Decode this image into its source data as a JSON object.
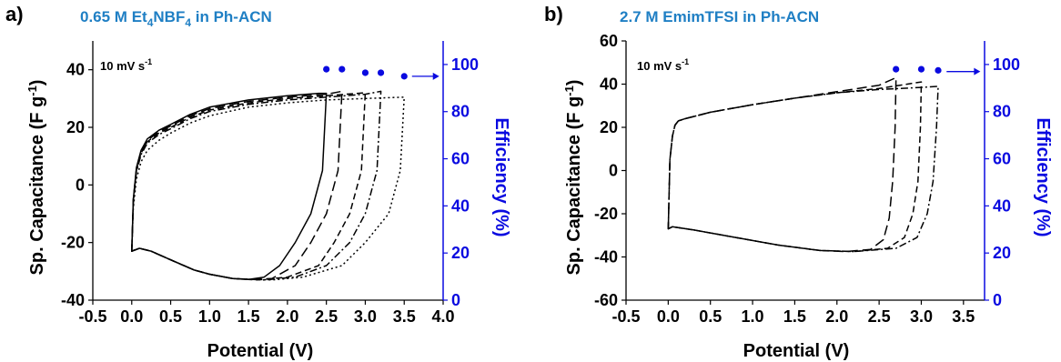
{
  "colors": {
    "efficiency": "#0a0ae0",
    "title": "#1f7fc4",
    "axis": "#000000"
  },
  "panels": [
    {
      "letter": "a)",
      "title_pre": "0.65 M Et",
      "title_sub1": "4",
      "title_mid": "NBF",
      "title_sub2": "4",
      "title_post": " in Ph-ACN",
      "scan_rate": "10 mV s",
      "scan_rate_exp": "-1",
      "xlabel": "Potential (V)",
      "ylabel": "Sp. Capacitance (F g",
      "ylabel_exp": "-1",
      "ylabel_close": ")",
      "y2label": "Efficiency (%)",
      "arrow": "→"
    },
    {
      "letter": "b)",
      "title_pre": "2.7 M EmimTFSI in Ph-ACN",
      "title_sub1": "",
      "title_mid": "",
      "title_sub2": "",
      "title_post": "",
      "scan_rate": "10 mV s",
      "scan_rate_exp": "-1",
      "xlabel": "Potential (V)",
      "ylabel": "Sp. Capacitance (F g",
      "ylabel_exp": "-1",
      "ylabel_close": ")",
      "y2label": "Efficiency (%)",
      "arrow": "→"
    }
  ],
  "chart_data": [
    {
      "type": "line",
      "xlabel": "Potential (V)",
      "ylabel": "Sp. Capacitance (F g-1)",
      "y2label": "Efficiency (%)",
      "xlim": [
        -0.5,
        4.0
      ],
      "ylim": [
        -40,
        50
      ],
      "y2lim": [
        0,
        110
      ],
      "xticks": [
        -0.5,
        0.0,
        0.5,
        1.0,
        1.5,
        2.0,
        2.5,
        3.0,
        3.5,
        4.0
      ],
      "xtick_labels": [
        "-0.5",
        "0.0",
        "0.5",
        "1.0",
        "1.5",
        "2.0",
        "2.5",
        "3.0",
        "3.5",
        "4.0"
      ],
      "yticks": [
        -40,
        -20,
        0,
        20,
        40
      ],
      "ytick_labels": [
        "-40",
        "-20",
        "0",
        "20",
        "40"
      ],
      "y2ticks": [
        0,
        20,
        40,
        60,
        80,
        100
      ],
      "y2tick_labels": [
        "0",
        "20",
        "40",
        "60",
        "80",
        "100"
      ],
      "cv_curves": [
        {
          "vmax": 2.5,
          "style": "solid",
          "upper": [
            [
              0,
              -23
            ],
            [
              0.02,
              -5
            ],
            [
              0.06,
              6
            ],
            [
              0.12,
              12
            ],
            [
              0.2,
              16
            ],
            [
              0.35,
              19
            ],
            [
              0.5,
              21
            ],
            [
              0.75,
              24.5
            ],
            [
              1.0,
              27
            ],
            [
              1.5,
              29.5
            ],
            [
              2.0,
              31
            ],
            [
              2.4,
              31.8
            ],
            [
              2.5,
              31.8
            ]
          ],
          "lower": [
            [
              0,
              -23
            ],
            [
              0.02,
              -22.8
            ],
            [
              0.1,
              -22
            ],
            [
              0.25,
              -23
            ],
            [
              0.5,
              -26
            ],
            [
              0.8,
              -29.5
            ],
            [
              1.0,
              -31
            ],
            [
              1.3,
              -32.5
            ],
            [
              1.5,
              -32.8
            ],
            [
              1.7,
              -32
            ],
            [
              1.9,
              -28
            ],
            [
              2.1,
              -20
            ],
            [
              2.3,
              -10
            ],
            [
              2.45,
              5
            ],
            [
              2.5,
              31.8
            ]
          ]
        },
        {
          "vmax": 2.7,
          "style": "long-dash",
          "upper": [
            [
              0,
              -23
            ],
            [
              0.02,
              -5
            ],
            [
              0.06,
              5.5
            ],
            [
              0.12,
              11.5
            ],
            [
              0.2,
              15.5
            ],
            [
              0.35,
              18.5
            ],
            [
              0.5,
              20.5
            ],
            [
              0.75,
              24
            ],
            [
              1.0,
              26.5
            ],
            [
              1.5,
              29
            ],
            [
              2.0,
              30.5
            ],
            [
              2.5,
              31.5
            ],
            [
              2.7,
              32.5
            ]
          ],
          "lower": [
            [
              0,
              -23
            ],
            [
              0.02,
              -22.8
            ],
            [
              0.1,
              -22
            ],
            [
              0.25,
              -23
            ],
            [
              0.5,
              -26
            ],
            [
              0.8,
              -29.5
            ],
            [
              1.0,
              -31
            ],
            [
              1.3,
              -32.5
            ],
            [
              1.5,
              -32.8
            ],
            [
              1.8,
              -32.5
            ],
            [
              2.1,
              -28
            ],
            [
              2.3,
              -20
            ],
            [
              2.5,
              -10
            ],
            [
              2.65,
              5
            ],
            [
              2.7,
              32.5
            ]
          ]
        },
        {
          "vmax": 3.0,
          "style": "dash",
          "upper": [
            [
              0,
              -23
            ],
            [
              0.02,
              -5.5
            ],
            [
              0.06,
              5
            ],
            [
              0.12,
              11
            ],
            [
              0.2,
              15
            ],
            [
              0.35,
              18
            ],
            [
              0.5,
              20
            ],
            [
              0.75,
              23.5
            ],
            [
              1.0,
              26
            ],
            [
              1.5,
              28.5
            ],
            [
              2.0,
              30
            ],
            [
              2.5,
              31
            ],
            [
              3.0,
              32
            ]
          ],
          "lower": [
            [
              0,
              -23
            ],
            [
              0.02,
              -22.8
            ],
            [
              0.1,
              -22
            ],
            [
              0.25,
              -23
            ],
            [
              0.5,
              -26
            ],
            [
              0.8,
              -29.5
            ],
            [
              1.0,
              -31
            ],
            [
              1.3,
              -32.5
            ],
            [
              1.6,
              -33
            ],
            [
              2.0,
              -32
            ],
            [
              2.4,
              -28
            ],
            [
              2.6,
              -20
            ],
            [
              2.8,
              -10
            ],
            [
              2.95,
              5
            ],
            [
              3.0,
              32
            ]
          ]
        },
        {
          "vmax": 3.2,
          "style": "dash-dot",
          "upper": [
            [
              0,
              -23
            ],
            [
              0.02,
              -6
            ],
            [
              0.06,
              4.5
            ],
            [
              0.12,
              10.5
            ],
            [
              0.2,
              14.5
            ],
            [
              0.35,
              17.5
            ],
            [
              0.5,
              19.5
            ],
            [
              0.75,
              23
            ],
            [
              1.0,
              25.5
            ],
            [
              1.5,
              28
            ],
            [
              2.0,
              29.5
            ],
            [
              2.5,
              30.5
            ],
            [
              3.0,
              31.5
            ],
            [
              3.2,
              32.5
            ]
          ],
          "lower": [
            [
              0,
              -23
            ],
            [
              0.02,
              -22.8
            ],
            [
              0.1,
              -22
            ],
            [
              0.25,
              -23
            ],
            [
              0.5,
              -26
            ],
            [
              0.8,
              -29.5
            ],
            [
              1.0,
              -31
            ],
            [
              1.3,
              -32.5
            ],
            [
              1.7,
              -33
            ],
            [
              2.1,
              -32
            ],
            [
              2.5,
              -28
            ],
            [
              2.8,
              -20
            ],
            [
              3.0,
              -10
            ],
            [
              3.15,
              5
            ],
            [
              3.2,
              32.5
            ]
          ]
        },
        {
          "vmax": 3.5,
          "style": "dot",
          "upper": [
            [
              0,
              -23
            ],
            [
              0.02,
              -8
            ],
            [
              0.06,
              2
            ],
            [
              0.12,
              8
            ],
            [
              0.2,
              12
            ],
            [
              0.35,
              15.5
            ],
            [
              0.5,
              18
            ],
            [
              0.75,
              21.5
            ],
            [
              1.0,
              24
            ],
            [
              1.5,
              27
            ],
            [
              2.0,
              28.5
            ],
            [
              2.5,
              29.5
            ],
            [
              3.0,
              30
            ],
            [
              3.5,
              30.5
            ]
          ],
          "lower": [
            [
              0,
              -23
            ],
            [
              0.02,
              -22.8
            ],
            [
              0.1,
              -22
            ],
            [
              0.25,
              -23
            ],
            [
              0.5,
              -26
            ],
            [
              0.8,
              -29.5
            ],
            [
              1.0,
              -31
            ],
            [
              1.3,
              -32.5
            ],
            [
              1.8,
              -33
            ],
            [
              2.2,
              -32
            ],
            [
              2.7,
              -28
            ],
            [
              3.0,
              -20
            ],
            [
              3.3,
              -10
            ],
            [
              3.45,
              5
            ],
            [
              3.5,
              30.5
            ]
          ]
        }
      ],
      "efficiency_points": {
        "x": [
          2.5,
          2.7,
          3.0,
          3.2,
          3.5
        ],
        "y": [
          98,
          98,
          96.5,
          96.5,
          95
        ]
      },
      "efficiency_arrow": {
        "from": [
          3.6,
          95
        ],
        "to": [
          3.95,
          95
        ]
      }
    },
    {
      "type": "line",
      "xlabel": "Potential (V)",
      "ylabel": "Sp. Capacitance (F g-1)",
      "y2label": "Efficiency (%)",
      "xlim": [
        -0.5,
        3.75
      ],
      "ylim": [
        -60,
        60
      ],
      "y2lim": [
        0,
        110
      ],
      "xticks": [
        -0.5,
        0.0,
        0.5,
        1.0,
        1.5,
        2.0,
        2.5,
        3.0,
        3.5
      ],
      "xtick_labels": [
        "-0.5",
        "0.0",
        "0.5",
        "1.0",
        "1.5",
        "2.0",
        "2.5",
        "3.0",
        "3.5"
      ],
      "yticks": [
        -60,
        -40,
        -20,
        0,
        20,
        40,
        60
      ],
      "ytick_labels": [
        "-60",
        "-40",
        "-20",
        "0",
        "20",
        "40",
        "60"
      ],
      "y2ticks": [
        0,
        20,
        40,
        60,
        80,
        100
      ],
      "y2tick_labels": [
        "0",
        "20",
        "40",
        "60",
        "80",
        "100"
      ],
      "cv_curves": [
        {
          "vmax": 2.7,
          "style": "long-dash",
          "upper": [
            [
              0,
              -27
            ],
            [
              0.02,
              5
            ],
            [
              0.05,
              16
            ],
            [
              0.08,
              21
            ],
            [
              0.12,
              23
            ],
            [
              0.2,
              24
            ],
            [
              0.5,
              27
            ],
            [
              1.0,
              30.5
            ],
            [
              1.5,
              33.5
            ],
            [
              2.0,
              36.5
            ],
            [
              2.5,
              39.5
            ],
            [
              2.7,
              43
            ]
          ],
          "lower": [
            [
              0,
              -27
            ],
            [
              0.05,
              -26
            ],
            [
              0.3,
              -27.5
            ],
            [
              0.8,
              -31
            ],
            [
              1.3,
              -34.5
            ],
            [
              1.8,
              -37
            ],
            [
              2.1,
              -37.5
            ],
            [
              2.4,
              -36.5
            ],
            [
              2.55,
              -32
            ],
            [
              2.62,
              -22
            ],
            [
              2.66,
              -5
            ],
            [
              2.69,
              20
            ],
            [
              2.7,
              43
            ]
          ]
        },
        {
          "vmax": 3.0,
          "style": "dash",
          "upper": [
            [
              0,
              -27
            ],
            [
              0.02,
              5
            ],
            [
              0.05,
              16
            ],
            [
              0.08,
              21
            ],
            [
              0.12,
              23
            ],
            [
              0.2,
              24
            ],
            [
              0.5,
              27
            ],
            [
              1.0,
              30.5
            ],
            [
              1.5,
              33.5
            ],
            [
              2.0,
              36
            ],
            [
              2.5,
              38
            ],
            [
              3.0,
              41
            ]
          ],
          "lower": [
            [
              0,
              -27
            ],
            [
              0.05,
              -26
            ],
            [
              0.3,
              -27.5
            ],
            [
              0.8,
              -31
            ],
            [
              1.3,
              -34.5
            ],
            [
              1.8,
              -37
            ],
            [
              2.2,
              -37.5
            ],
            [
              2.6,
              -36
            ],
            [
              2.8,
              -31
            ],
            [
              2.9,
              -20
            ],
            [
              2.96,
              -5
            ],
            [
              2.99,
              20
            ],
            [
              3.0,
              41
            ]
          ]
        },
        {
          "vmax": 3.2,
          "style": "dash-dot",
          "upper": [
            [
              0,
              -27
            ],
            [
              0.02,
              5
            ],
            [
              0.05,
              16
            ],
            [
              0.08,
              21
            ],
            [
              0.12,
              23
            ],
            [
              0.2,
              24
            ],
            [
              0.5,
              27
            ],
            [
              1.0,
              30.5
            ],
            [
              1.5,
              33.5
            ],
            [
              2.0,
              36
            ],
            [
              2.5,
              37.5
            ],
            [
              3.0,
              38.5
            ],
            [
              3.2,
              39
            ]
          ],
          "lower": [
            [
              0,
              -27
            ],
            [
              0.05,
              -26
            ],
            [
              0.3,
              -27.5
            ],
            [
              0.8,
              -31
            ],
            [
              1.3,
              -34.5
            ],
            [
              1.8,
              -37
            ],
            [
              2.2,
              -37.5
            ],
            [
              2.7,
              -36
            ],
            [
              2.95,
              -31
            ],
            [
              3.07,
              -20
            ],
            [
              3.14,
              -5
            ],
            [
              3.18,
              20
            ],
            [
              3.2,
              39
            ]
          ]
        }
      ],
      "efficiency_points": {
        "x": [
          2.7,
          3.0,
          3.2
        ],
        "y": [
          98,
          98,
          97.5
        ]
      },
      "efficiency_arrow": {
        "from": [
          3.3,
          97
        ],
        "to": [
          3.7,
          97
        ]
      }
    }
  ]
}
